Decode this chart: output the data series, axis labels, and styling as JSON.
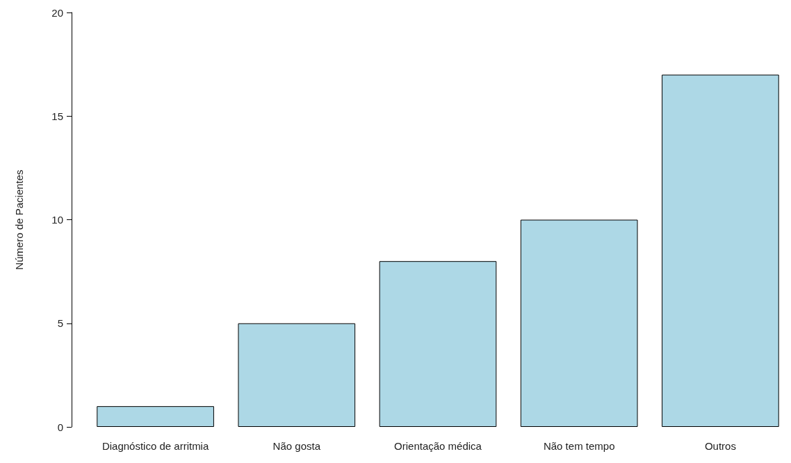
{
  "chart_data": {
    "type": "bar",
    "ylabel": "Número de Pacientes",
    "categories": [
      "Diagnóstico de arritmia",
      "Não gosta",
      "Orientação médica",
      "Não tem tempo",
      "Outros"
    ],
    "values": [
      1,
      5,
      8,
      10,
      17
    ],
    "color": "#add8e6",
    "ylim": [
      0,
      20
    ],
    "yticks": [
      0,
      5,
      10,
      15,
      20
    ],
    "grid": false
  }
}
